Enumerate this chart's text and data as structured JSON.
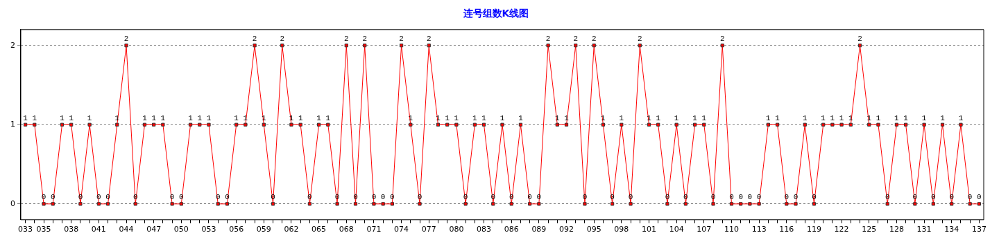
{
  "chart_data": {
    "type": "line",
    "title": "连号组数K线图",
    "categories": [
      "033",
      null,
      "035",
      null,
      null,
      "038",
      null,
      null,
      "041",
      null,
      null,
      "044",
      null,
      null,
      "047",
      null,
      null,
      "050",
      null,
      null,
      "053",
      null,
      null,
      "056",
      null,
      null,
      "059",
      null,
      null,
      "062",
      null,
      null,
      "065",
      null,
      null,
      "068",
      null,
      null,
      "071",
      null,
      null,
      "074",
      null,
      null,
      "077",
      null,
      null,
      "080",
      null,
      null,
      "083",
      null,
      null,
      "086",
      null,
      null,
      "089",
      null,
      null,
      "092",
      null,
      null,
      "095",
      null,
      null,
      "098",
      null,
      null,
      "101",
      null,
      null,
      "104",
      null,
      null,
      "107",
      null,
      null,
      "110",
      null,
      null,
      "113",
      null,
      null,
      "116",
      null,
      null,
      "119",
      null,
      null,
      "122",
      null,
      null,
      "125",
      null,
      null,
      "128",
      null,
      null,
      "131",
      null,
      null,
      "134",
      null,
      null,
      "137"
    ],
    "series": [
      {
        "color": "#ff0000",
        "values": [
          1,
          1,
          0,
          0,
          1,
          1,
          0,
          1,
          0,
          0,
          1,
          2,
          0,
          1,
          1,
          1,
          0,
          0,
          1,
          1,
          1,
          0,
          0,
          1,
          1,
          2,
          1,
          0,
          2,
          1,
          1,
          0,
          1,
          1,
          0,
          2,
          0,
          2,
          0,
          0,
          0,
          2,
          1,
          0,
          2,
          1,
          1,
          1,
          0,
          1,
          1,
          0,
          1,
          0,
          1,
          0,
          0,
          2,
          1,
          1,
          2,
          0,
          2,
          1,
          0,
          1,
          0,
          2,
          1,
          1,
          0,
          1,
          0,
          1,
          1,
          0,
          2,
          0,
          0,
          0,
          0,
          1,
          1,
          0,
          0,
          1,
          0,
          1,
          1,
          1,
          1,
          2,
          1,
          1,
          0,
          1,
          1,
          0,
          1,
          0,
          1,
          0,
          1,
          0,
          0
        ]
      }
    ],
    "ylim": [
      -0.2,
      2.2
    ],
    "yticks": [
      0,
      1,
      2
    ],
    "grid": "y",
    "legend": false,
    "marker": "square",
    "line_style": "solid",
    "data_labels": true
  }
}
